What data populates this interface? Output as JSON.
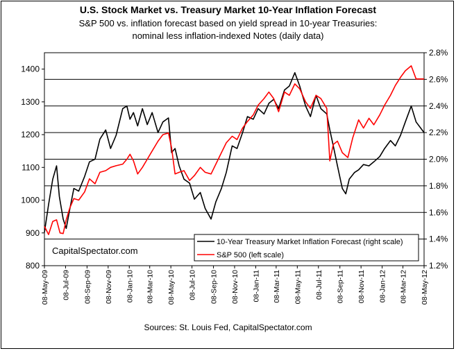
{
  "chart_data": {
    "type": "line",
    "title": "U.S. Stock Market vs. Treasury Market 10-Year Inflation Forecast",
    "subtitle_lines": [
      "S&P 500 vs. inflation forecast based on yield spread in 10-year Treasuries:",
      "nominal less inflation-indexed Notes (daily data)"
    ],
    "source": "Sources: St. Louis Fed, CapitalSpectator.com",
    "watermark": "CapitalSpectator.com",
    "grid": "horizontal",
    "legend_position": "bottom-right",
    "left_axis": {
      "range": [
        800,
        1450
      ],
      "ticks": [
        "800",
        "900",
        "1000",
        "1100",
        "1200",
        "1300",
        "1400"
      ]
    },
    "right_axis": {
      "range": [
        1.2,
        2.8
      ],
      "ticks": [
        "1.2%",
        "1.4%",
        "1.6%",
        "1.8%",
        "2.0%",
        "2.2%",
        "2.4%",
        "2.6%",
        "2.8%"
      ]
    },
    "x_axis": {
      "range": [
        "2009-05-08",
        "2012-05-08"
      ],
      "ticks": [
        "08-May-09",
        "08-Jul-09",
        "08-Sep-09",
        "08-Nov-09",
        "08-Jan-10",
        "08-Mar-10",
        "08-May-10",
        "08-Jul-10",
        "08-Sep-10",
        "08-Nov-10",
        "08-Jan-11",
        "08-Mar-11",
        "08-May-11",
        "08-Jul-11",
        "08-Sep-11",
        "08-Nov-11",
        "08-Jan-12",
        "08-Mar-12",
        "08-May-12"
      ]
    },
    "series": [
      {
        "name": "10-Year Treasury Market Inflation Forecast (right scale)",
        "color": "#000000",
        "axis": "right",
        "x": [
          "2009-05-08",
          "2009-05-20",
          "2009-06-01",
          "2009-06-12",
          "2009-06-20",
          "2009-07-01",
          "2009-07-10",
          "2009-07-20",
          "2009-08-01",
          "2009-08-15",
          "2009-09-01",
          "2009-09-15",
          "2009-10-01",
          "2009-10-15",
          "2009-11-01",
          "2009-11-15",
          "2009-12-01",
          "2009-12-20",
          "2010-01-01",
          "2010-01-10",
          "2010-01-20",
          "2010-02-01",
          "2010-02-15",
          "2010-03-01",
          "2010-03-15",
          "2010-04-01",
          "2010-04-15",
          "2010-05-01",
          "2010-05-10",
          "2010-05-20",
          "2010-06-01",
          "2010-06-15",
          "2010-07-01",
          "2010-07-15",
          "2010-08-01",
          "2010-08-15",
          "2010-09-01",
          "2010-09-15",
          "2010-10-01",
          "2010-10-15",
          "2010-11-01",
          "2010-11-15",
          "2010-12-01",
          "2010-12-15",
          "2011-01-01",
          "2011-01-15",
          "2011-02-01",
          "2011-02-15",
          "2011-03-01",
          "2011-03-15",
          "2011-04-01",
          "2011-04-15",
          "2011-05-01",
          "2011-05-15",
          "2011-06-01",
          "2011-06-15",
          "2011-07-01",
          "2011-07-15",
          "2011-08-01",
          "2011-08-10",
          "2011-08-20",
          "2011-09-01",
          "2011-09-15",
          "2011-09-25",
          "2011-10-05",
          "2011-10-20",
          "2011-11-01",
          "2011-11-15",
          "2011-12-01",
          "2011-12-15",
          "2012-01-01",
          "2012-01-15",
          "2012-02-01",
          "2012-02-15",
          "2012-03-01",
          "2012-03-15",
          "2012-04-01",
          "2012-04-15",
          "2012-05-08"
        ],
        "values": [
          1.45,
          1.66,
          1.85,
          1.95,
          1.72,
          1.55,
          1.48,
          1.62,
          1.78,
          1.76,
          1.87,
          1.98,
          2.0,
          2.15,
          2.22,
          2.08,
          2.18,
          2.38,
          2.4,
          2.3,
          2.35,
          2.25,
          2.38,
          2.26,
          2.35,
          2.2,
          2.28,
          2.31,
          2.05,
          2.08,
          1.95,
          1.85,
          1.82,
          1.7,
          1.75,
          1.63,
          1.55,
          1.68,
          1.78,
          1.9,
          2.1,
          2.08,
          2.2,
          2.32,
          2.3,
          2.38,
          2.34,
          2.42,
          2.45,
          2.38,
          2.52,
          2.55,
          2.65,
          2.55,
          2.4,
          2.32,
          2.48,
          2.38,
          2.34,
          2.22,
          2.1,
          1.95,
          1.78,
          1.74,
          1.85,
          1.9,
          1.92,
          1.96,
          1.95,
          1.98,
          2.02,
          2.08,
          2.14,
          2.1,
          2.18,
          2.28,
          2.4,
          2.28,
          2.2
        ]
      },
      {
        "name": "S&P 500 (left scale)",
        "color": "#ff0000",
        "axis": "left",
        "x": [
          "2009-05-08",
          "2009-05-20",
          "2009-06-01",
          "2009-06-12",
          "2009-06-22",
          "2009-07-01",
          "2009-07-10",
          "2009-07-20",
          "2009-08-01",
          "2009-08-15",
          "2009-09-01",
          "2009-09-15",
          "2009-10-01",
          "2009-10-15",
          "2009-11-01",
          "2009-11-15",
          "2009-12-01",
          "2009-12-20",
          "2010-01-01",
          "2010-01-10",
          "2010-01-20",
          "2010-02-01",
          "2010-02-15",
          "2010-03-01",
          "2010-03-15",
          "2010-04-01",
          "2010-04-15",
          "2010-05-01",
          "2010-05-10",
          "2010-05-20",
          "2010-06-01",
          "2010-06-15",
          "2010-07-01",
          "2010-07-15",
          "2010-08-01",
          "2010-08-15",
          "2010-09-01",
          "2010-09-15",
          "2010-10-01",
          "2010-10-15",
          "2010-11-01",
          "2010-11-15",
          "2010-12-01",
          "2010-12-15",
          "2011-01-01",
          "2011-01-15",
          "2011-02-01",
          "2011-02-15",
          "2011-03-01",
          "2011-03-15",
          "2011-04-01",
          "2011-04-15",
          "2011-05-01",
          "2011-05-15",
          "2011-06-01",
          "2011-06-15",
          "2011-07-01",
          "2011-07-15",
          "2011-08-01",
          "2011-08-10",
          "2011-08-20",
          "2011-09-01",
          "2011-09-15",
          "2011-10-01",
          "2011-10-15",
          "2011-11-01",
          "2011-11-15",
          "2011-12-01",
          "2011-12-15",
          "2012-01-01",
          "2012-01-15",
          "2012-02-01",
          "2012-02-15",
          "2012-03-01",
          "2012-03-15",
          "2012-04-01",
          "2012-04-15",
          "2012-05-08"
        ],
        "values": [
          920,
          895,
          935,
          940,
          900,
          898,
          940,
          975,
          1005,
          1000,
          1025,
          1065,
          1050,
          1085,
          1090,
          1100,
          1105,
          1110,
          1125,
          1140,
          1120,
          1080,
          1100,
          1125,
          1150,
          1180,
          1200,
          1205,
          1160,
          1080,
          1085,
          1090,
          1060,
          1075,
          1100,
          1085,
          1080,
          1110,
          1145,
          1175,
          1195,
          1185,
          1220,
          1240,
          1260,
          1290,
          1310,
          1330,
          1310,
          1270,
          1330,
          1320,
          1355,
          1340,
          1300,
          1280,
          1320,
          1310,
          1280,
          1120,
          1170,
          1180,
          1145,
          1130,
          1190,
          1245,
          1220,
          1250,
          1230,
          1260,
          1290,
          1320,
          1350,
          1375,
          1395,
          1410,
          1370,
          1370
        ]
      }
    ]
  }
}
